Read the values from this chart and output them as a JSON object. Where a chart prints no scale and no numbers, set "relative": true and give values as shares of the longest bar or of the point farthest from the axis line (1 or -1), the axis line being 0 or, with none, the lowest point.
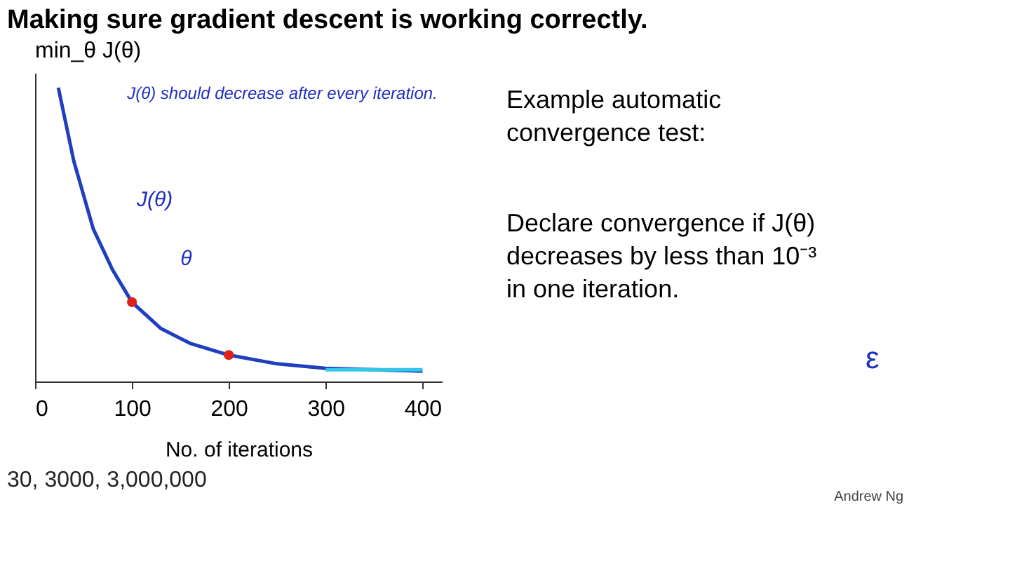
{
  "chart_data": {
    "type": "line",
    "title": "Making sure gradient descent is working correctly.",
    "ylabel": "min_θ J(θ)",
    "xlabel": "No. of iterations",
    "relative": true,
    "x": [
      24,
      40,
      60,
      80,
      100,
      130,
      160,
      200,
      250,
      300,
      400
    ],
    "series": [
      {
        "color": "#1f3fbf",
        "values": [
          1,
          0.75,
          0.52,
          0.38,
          0.27,
          0.18,
          0.13,
          0.09,
          0.06,
          0.045,
          0.035
        ]
      },
      {
        "type": "scatter",
        "color": "#e0201a",
        "marker": "circle",
        "x": [
          100,
          200
        ],
        "values": [
          0.27,
          0.09
        ]
      },
      {
        "color": "#30c8e8",
        "x": [
          300,
          400
        ],
        "values": [
          0.04,
          0.04
        ]
      }
    ],
    "xlim": [
      0,
      420
    ],
    "xticks": [
      0,
      100,
      200,
      300,
      400
    ],
    "grid": false,
    "marker": "none",
    "annotations": [
      "J(θ) should decrease after every iteration.",
      "J(θ)",
      "θ",
      "Example automatic convergence test:",
      "Declare convergence if J(θ) decreases by less than 10⁻³ in one iteration.",
      "ε",
      "30, 3000, 3,000,000",
      "Andrew Ng"
    ]
  }
}
